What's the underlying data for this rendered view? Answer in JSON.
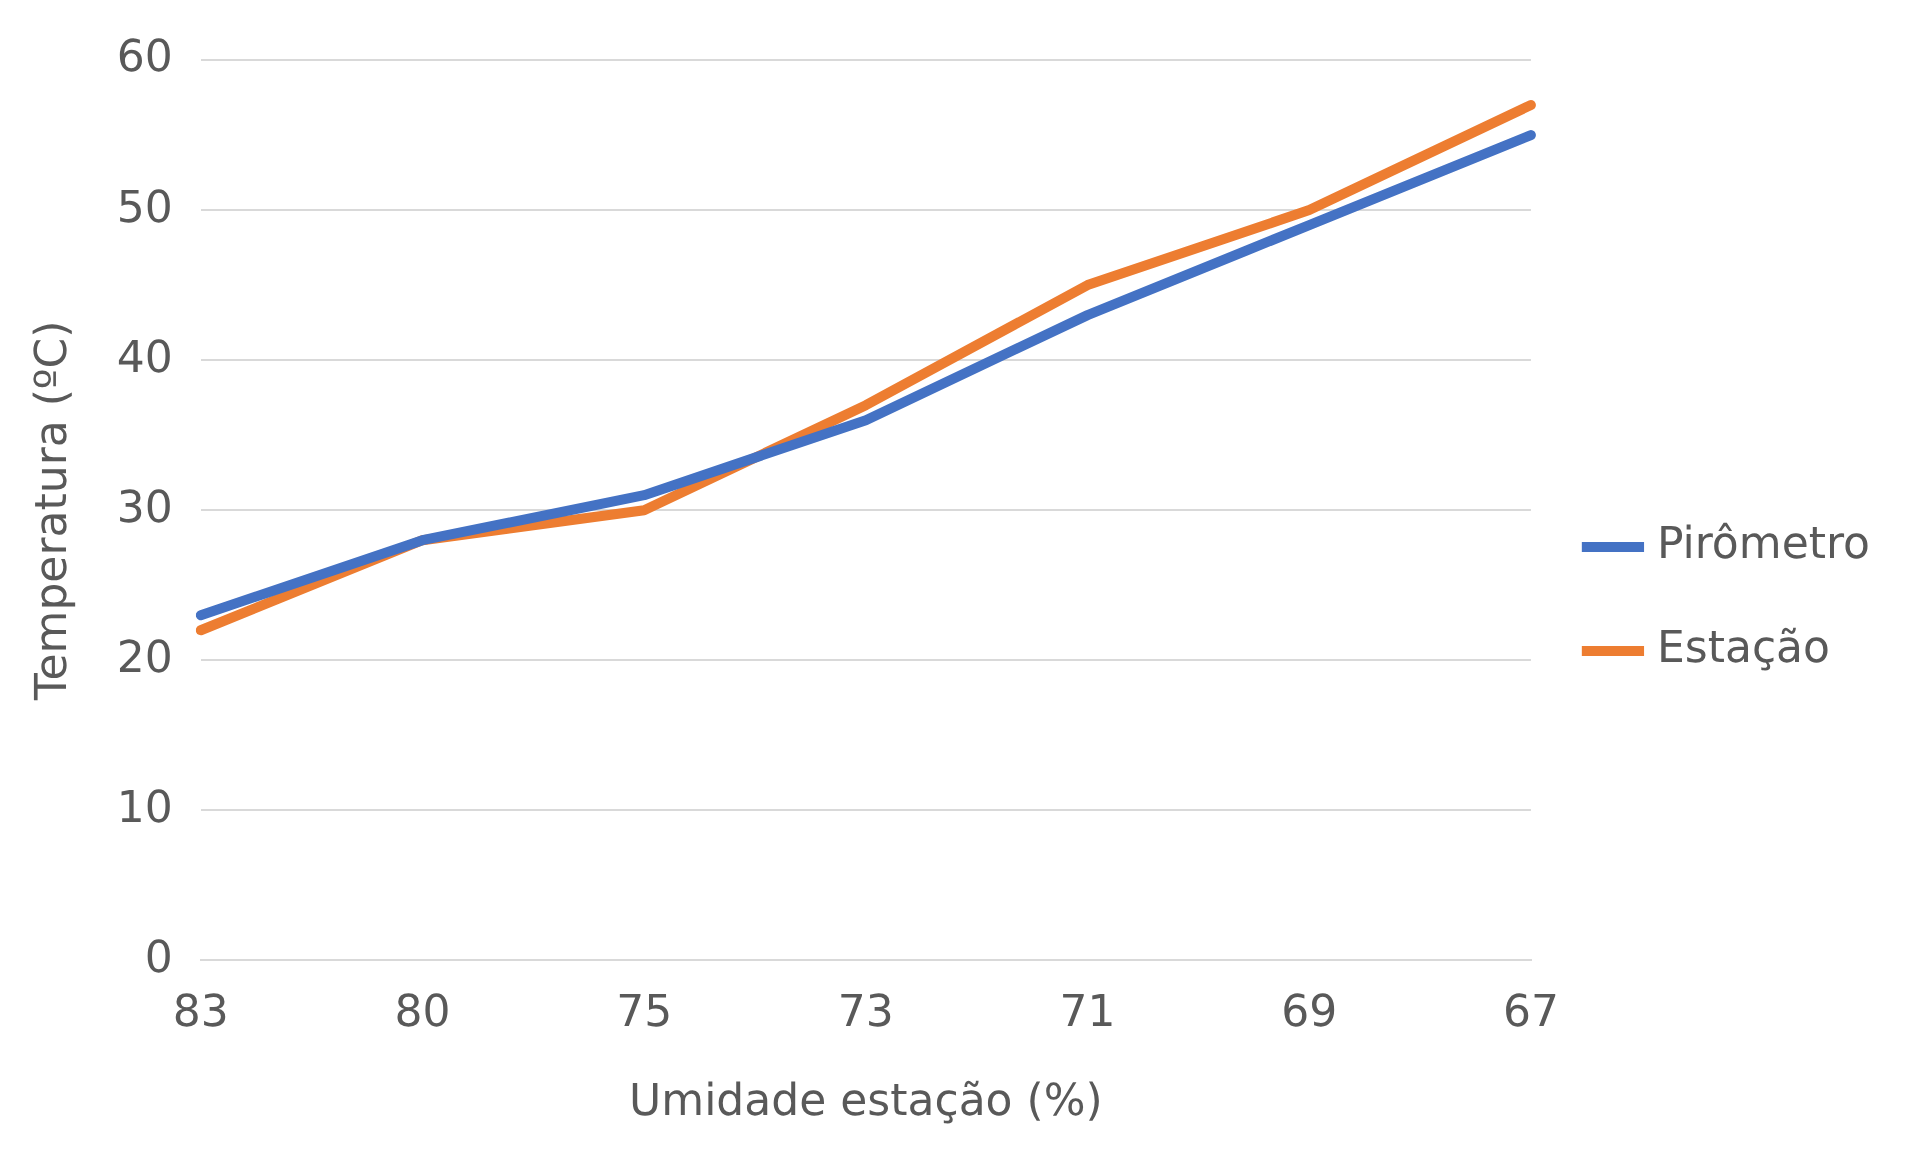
{
  "chart_data": {
    "type": "line",
    "xlabel": "Umidade estação (%)",
    "ylabel": "Temperatura (ºC)",
    "categories": [
      "83",
      "80",
      "75",
      "73",
      "71",
      "69",
      "67"
    ],
    "series": [
      {
        "name": "Pirômetro",
        "color": "#4472c4",
        "values": [
          23,
          28,
          31,
          36,
          43,
          49,
          55
        ]
      },
      {
        "name": "Estação",
        "color": "#ed7d31",
        "values": [
          22,
          28,
          30,
          37,
          45,
          50,
          57
        ]
      }
    ],
    "ylim": [
      0,
      60
    ],
    "yticks": [
      0,
      10,
      20,
      30,
      40,
      50,
      60
    ],
    "grid": "y",
    "legend": "right",
    "marker": "none",
    "line_style": "solid"
  }
}
